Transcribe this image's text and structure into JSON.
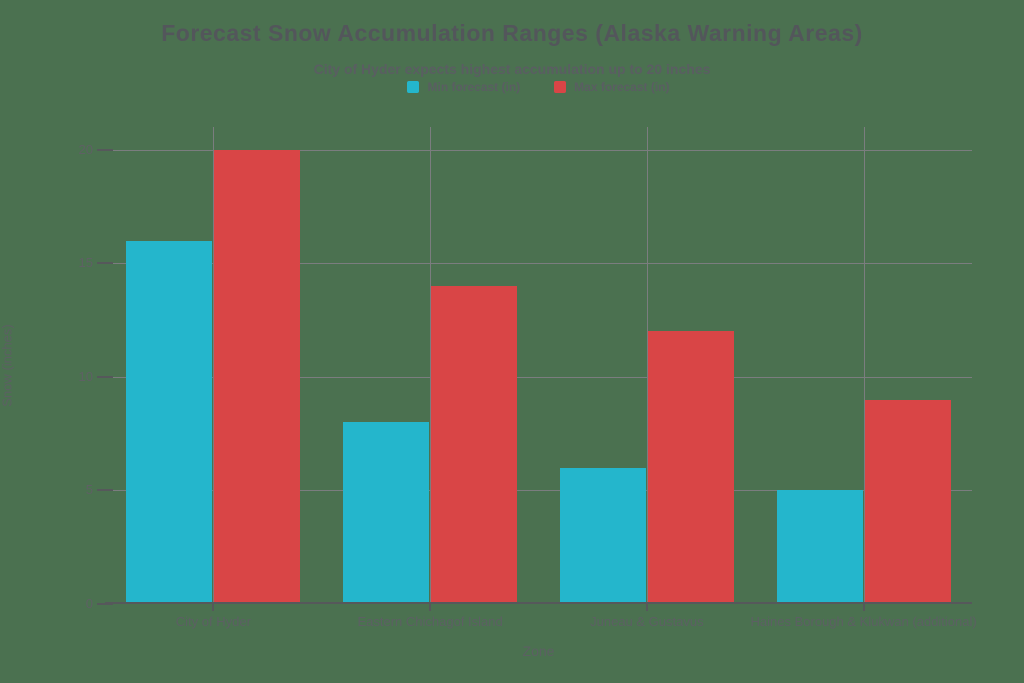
{
  "page": {
    "background_color": "#4b7150"
  },
  "chart_data": {
    "type": "bar",
    "title": "Forecast Snow Accumulation Ranges (Alaska Warning Areas)",
    "subtitle": "City of Hyder expects highest accumulation up to 20 inches",
    "categories": [
      "City of Hyder",
      "Eastern Chichagof Island",
      "Juneau & Gustavus",
      "Haines Borough & Klukwan (additional)"
    ],
    "series": [
      {
        "name": "Min forecast (in)",
        "color": "#24b6cc",
        "values": [
          16,
          8,
          6,
          5
        ]
      },
      {
        "name": "Max forecast (in)",
        "color": "#d94546",
        "values": [
          20,
          14,
          12,
          9
        ]
      }
    ],
    "xlabel": "Zone",
    "ylabel": "Snow (inches)",
    "ylim": [
      0,
      21
    ],
    "yticks": [
      0,
      5,
      10,
      15,
      20
    ],
    "grid": true,
    "legend_position": "top-center",
    "grid_color": "#7b7d7f",
    "axis_color": "#56585b",
    "text_color": "#5c6063"
  }
}
